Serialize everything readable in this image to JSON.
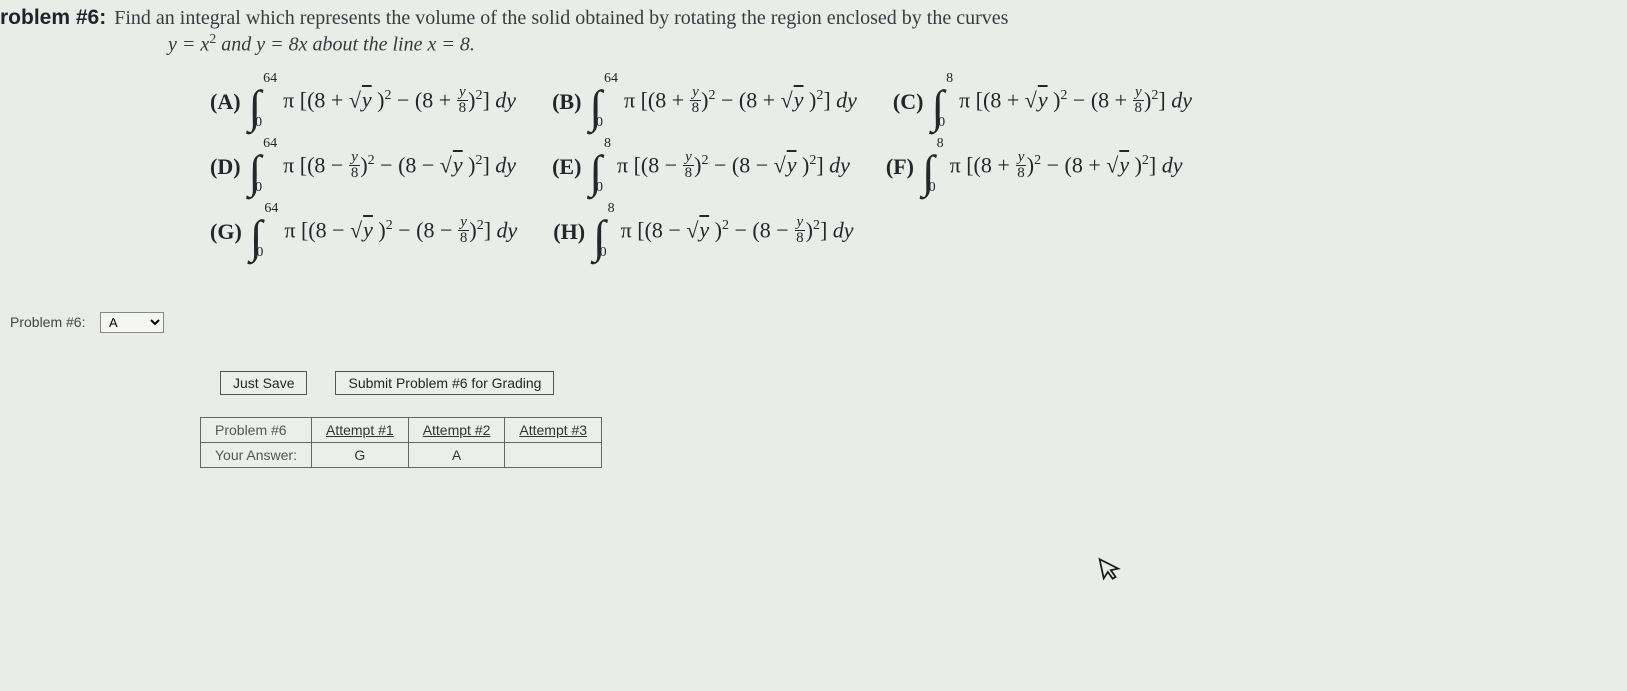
{
  "problem": {
    "number_label": "roblem #6:",
    "prompt_main": "Find an integral which represents the volume of the solid obtained by rotating the region enclosed by the curves",
    "prompt_sub_left": "y = x",
    "prompt_sub_exp": "2",
    "prompt_sub_mid": "  and  y = 8x  about the line x = 8."
  },
  "choices": {
    "rows": [
      [
        {
          "letter": "(A)",
          "upper": "64",
          "lower": "0",
          "sign1": "+",
          "inner1": "root",
          "sign2": "+",
          "inner2": "frac"
        },
        {
          "letter": "(B)",
          "upper": "64",
          "lower": "0",
          "sign1": "+",
          "inner1": "frac",
          "sign2": "+",
          "inner2": "root"
        },
        {
          "letter": "(C)",
          "upper": "8",
          "lower": "0",
          "sign1": "+",
          "inner1": "root",
          "sign2": "+",
          "inner2": "frac"
        }
      ],
      [
        {
          "letter": "(D)",
          "upper": "64",
          "lower": "0",
          "sign1": "−",
          "inner1": "frac",
          "sign2": "−",
          "inner2": "root"
        },
        {
          "letter": "(E)",
          "upper": "8",
          "lower": "0",
          "sign1": "−",
          "inner1": "frac",
          "sign2": "−",
          "inner2": "root"
        },
        {
          "letter": "(F)",
          "upper": "8",
          "lower": "0",
          "sign1": "+",
          "inner1": "frac",
          "sign2": "+",
          "inner2": "root"
        }
      ],
      [
        {
          "letter": "(G)",
          "upper": "64",
          "lower": "0",
          "sign1": "−",
          "inner1": "root",
          "sign2": "−",
          "inner2": "frac"
        },
        {
          "letter": "(H)",
          "upper": "8",
          "lower": "0",
          "sign1": "−",
          "inner1": "root",
          "sign2": "−",
          "inner2": "frac"
        }
      ]
    ],
    "pi": "π",
    "eight": "8",
    "frac_num": "y",
    "frac_den": "8",
    "root_radicand": "y",
    "dy": "dy"
  },
  "answer_select": {
    "label": "Problem #6:",
    "value": "A",
    "options": [
      "",
      "A",
      "B",
      "C",
      "D",
      "E",
      "F",
      "G",
      "H"
    ]
  },
  "buttons": {
    "save": "Just Save",
    "submit": "Submit Problem #6 for Grading"
  },
  "attempts": {
    "header": [
      "Problem #6",
      "Attempt #1",
      "Attempt #2",
      "Attempt #3"
    ],
    "row_label": "Your Answer:",
    "answers": [
      "G",
      "A",
      ""
    ]
  },
  "colors": {
    "bg": "#e9ece8",
    "text": "#25252a",
    "border": "#666666"
  }
}
